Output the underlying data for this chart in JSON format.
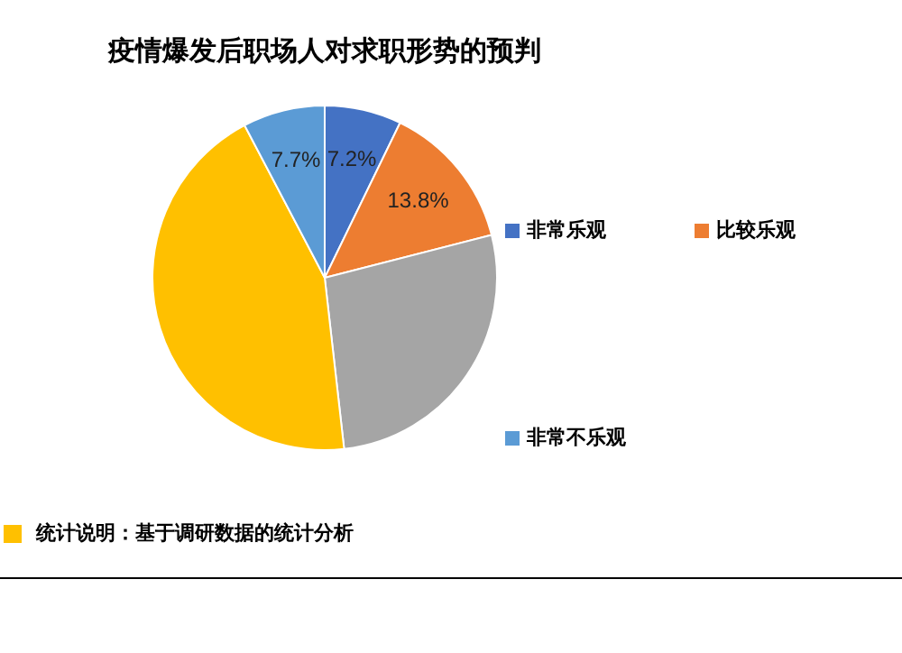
{
  "chart_data": {
    "type": "pie",
    "title": "疫情爆发后职场人对求职形势的预判",
    "categories": [
      "非常乐观",
      "比较乐观",
      null,
      null,
      "非常不乐观"
    ],
    "values": [
      7.2,
      13.8,
      27.2,
      44.1,
      7.7
    ],
    "value_labels": [
      "7.2%",
      "13.8%",
      null,
      null,
      "7.7%"
    ],
    "colors": [
      "#4472c4",
      "#ed7d31",
      "#a5a5a5",
      "#ffc000",
      "#5b9bd5"
    ],
    "legend": "right",
    "annotations": [
      "统计说明：基于调研数据的统计分析"
    ]
  }
}
